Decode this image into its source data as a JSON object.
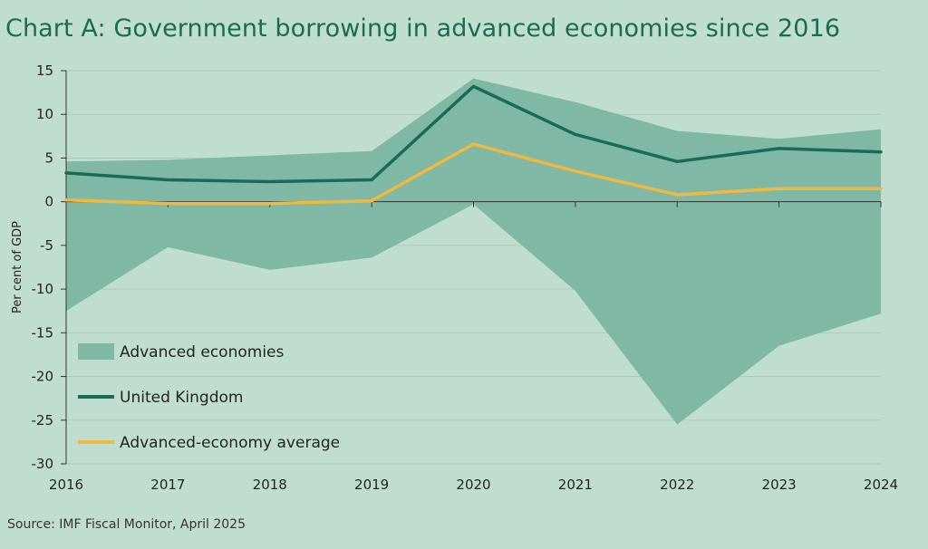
{
  "title": "Chart A: Government borrowing in advanced economies since 2016",
  "source": "Source: IMF Fiscal Monitor, April 2025",
  "colors": {
    "background": "#c0ded0",
    "band": "#7fb9a6",
    "uk": "#1a6b55",
    "average": "#f0b840",
    "grid": "#a9cbbd",
    "axis": "#333333"
  },
  "chart_data": {
    "type": "area",
    "title": "Chart A: Government borrowing in advanced economies since 2016",
    "xlabel": "",
    "ylabel": "Per cent of GDP",
    "x": [
      2016,
      2017,
      2018,
      2019,
      2020,
      2021,
      2022,
      2023,
      2024
    ],
    "xticks": [
      "2016",
      "2017",
      "2018",
      "2019",
      "2020",
      "2021",
      "2022",
      "2023",
      "2024"
    ],
    "ylim": [
      -30,
      15
    ],
    "yticks": [
      15,
      10,
      5,
      0,
      -5,
      -10,
      -15,
      -20,
      -25,
      -30
    ],
    "grid": true,
    "legend_position": "bottom-left",
    "series": [
      {
        "name": "Advanced economies",
        "kind": "range",
        "upper": [
          4.6,
          4.8,
          5.3,
          5.8,
          14.1,
          11.4,
          8.1,
          7.2,
          8.3
        ],
        "lower": [
          -12.5,
          -5.2,
          -7.8,
          -6.4,
          -0.3,
          -10.2,
          -25.5,
          -16.5,
          -12.8
        ]
      },
      {
        "name": "United Kingdom",
        "kind": "line",
        "values": [
          3.3,
          2.5,
          2.3,
          2.5,
          13.2,
          7.7,
          4.6,
          6.1,
          5.7
        ]
      },
      {
        "name": "Advanced-economy average",
        "kind": "line",
        "values": [
          0.2,
          -0.2,
          -0.2,
          0.1,
          6.6,
          3.5,
          0.8,
          1.5,
          1.5
        ]
      }
    ]
  }
}
